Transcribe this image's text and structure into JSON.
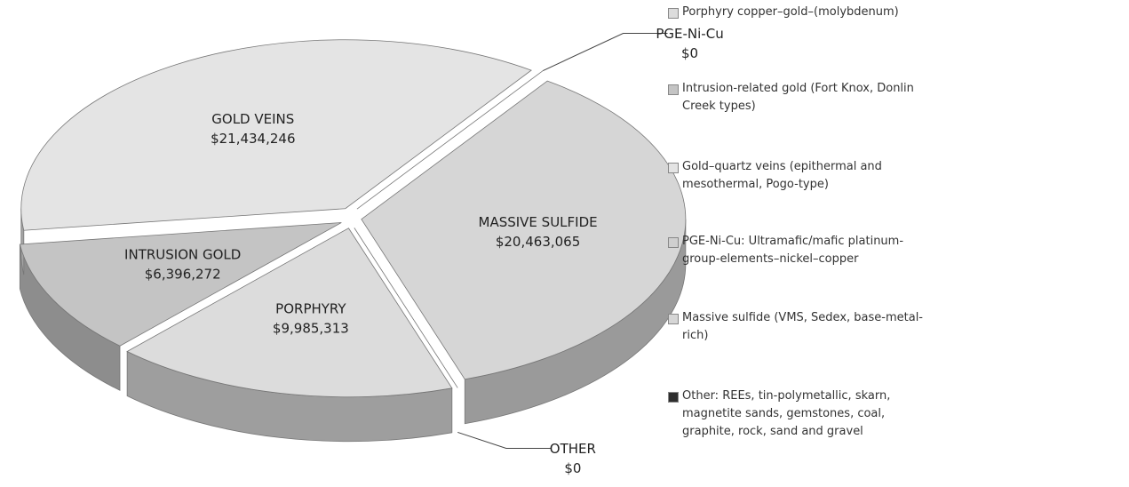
{
  "chart_data": {
    "type": "pie",
    "categories": [
      "Porphyry copper–gold–(molybdenum)",
      "Intrusion-related gold (Fort Knox, Donlin Creek types)",
      "Gold–quartz veins (epithermal and mesothermal, Pogo-type)",
      "PGE-Ni-Cu: Ultramafic/mafic platinum-group-elements–nickel–copper",
      "Massive sulfide (VMS, Sedex, base-metal-rich)",
      "Other: REEs, tin-polymetallic, skarn, magnetite sands, gemstones, coal, graphite, rock, sand and gravel"
    ],
    "slice_labels": [
      "PORPHYRY",
      "INTRUSION GOLD",
      "GOLD VEINS",
      "PGE-Ni-Cu",
      "MASSIVE SULFIDE",
      "OTHER"
    ],
    "values": [
      9985313,
      6396272,
      21434246,
      0,
      20463065,
      0
    ],
    "value_labels": [
      "$9,985,313",
      "$6,396,272",
      "$21,434,246",
      "$0",
      "$20,463,065",
      "$0"
    ],
    "colors": [
      "#dcdcdc",
      "#c4c4c4",
      "#e4e4e4",
      "#cfcfcf",
      "#d6d6d6",
      "#2e2e2e"
    ]
  }
}
